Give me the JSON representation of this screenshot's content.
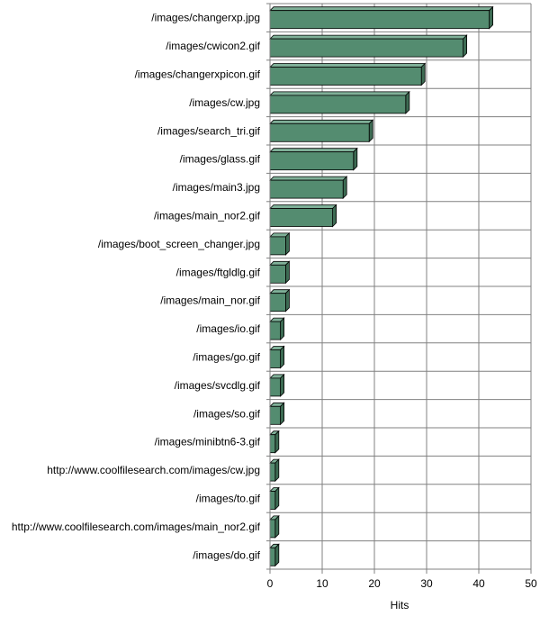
{
  "chart_data": {
    "type": "bar",
    "orientation": "horizontal",
    "categories": [
      "/images/changerxp.jpg",
      "/images/cwicon2.gif",
      "/images/changerxpicon.gif",
      "/images/cw.jpg",
      "/images/search_tri.gif",
      "/images/glass.gif",
      "/images/main3.jpg",
      "/images/main_nor2.gif",
      "/images/boot_screen_changer.jpg",
      "/images/ftgldlg.gif",
      "/images/main_nor.gif",
      "/images/io.gif",
      "/images/go.gif",
      "/images/svcdlg.gif",
      "/images/so.gif",
      "/images/minibtn6-3.gif",
      "http://www.coolfilesearch.com/images/cw.jpg",
      "/images/to.gif",
      "http://www.coolfilesearch.com/images/main_nor2.gif",
      "/images/do.gif"
    ],
    "values": [
      42,
      37,
      29,
      26,
      19,
      16,
      14,
      12,
      3,
      3,
      3,
      2,
      2,
      2,
      2,
      1,
      1,
      1,
      1,
      1
    ],
    "xlabel": "Hits",
    "ylabel": "",
    "xlim": [
      0,
      50
    ],
    "xticks": [
      0,
      10,
      20,
      30,
      40,
      50
    ],
    "grid": true,
    "bar_color": "#548c70",
    "bar_top_color": "#7fb098",
    "bar_side_color": "#3d6b53",
    "grid_color": "#808080",
    "axis_color": "#808080"
  }
}
